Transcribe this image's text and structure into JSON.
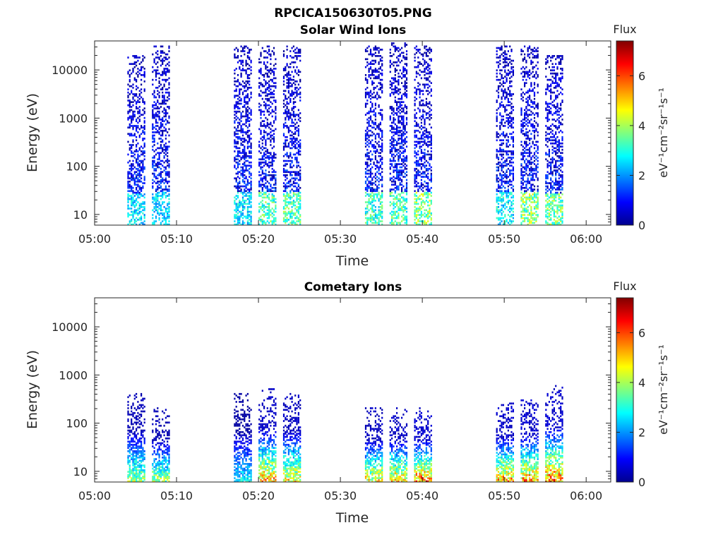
{
  "figure_title": "RPCICA150630T05.PNG",
  "colorbar": {
    "title": "Flux",
    "label": "eV⁻¹cm⁻²sr⁻¹s⁻¹",
    "ticks": [
      "0",
      "2",
      "4",
      "6"
    ],
    "range": [
      0,
      7.4
    ],
    "colormap": "jet"
  },
  "chart_data": [
    {
      "type": "heatmap",
      "title": "Solar Wind Ions",
      "xlabel": "Time",
      "ylabel": "Energy (eV)",
      "x_ticks": [
        "05:00",
        "05:10",
        "05:20",
        "05:30",
        "05:40",
        "05:50",
        "06:00"
      ],
      "x_range": [
        "05:00",
        "06:03"
      ],
      "y_scale": "log",
      "y_ticks": [
        "10",
        "100",
        "1000",
        "10000"
      ],
      "y_range": [
        6,
        40000
      ],
      "bursts": [
        {
          "center": "05:05",
          "peak_flux": 3.2,
          "max_energy_eV": 20000
        },
        {
          "center": "05:08",
          "peak_flux": 3.2,
          "max_energy_eV": 30000
        },
        {
          "center": "05:18",
          "peak_flux": 3.3,
          "max_energy_eV": 30000
        },
        {
          "center": "05:21",
          "peak_flux": 4.2,
          "max_energy_eV": 30000
        },
        {
          "center": "05:24",
          "peak_flux": 4.2,
          "max_energy_eV": 30000
        },
        {
          "center": "05:34",
          "peak_flux": 4.0,
          "max_energy_eV": 30000
        },
        {
          "center": "05:37",
          "peak_flux": 4.2,
          "max_energy_eV": 35000
        },
        {
          "center": "05:40",
          "peak_flux": 4.7,
          "max_energy_eV": 30000
        },
        {
          "center": "05:50",
          "peak_flux": 3.5,
          "max_energy_eV": 30000
        },
        {
          "center": "05:53",
          "peak_flux": 4.7,
          "max_energy_eV": 30000
        },
        {
          "center": "05:56",
          "peak_flux": 4.5,
          "max_energy_eV": 20000
        }
      ]
    },
    {
      "type": "heatmap",
      "title": "Cometary Ions",
      "xlabel": "Time",
      "ylabel": "Energy (eV)",
      "x_ticks": [
        "05:00",
        "05:10",
        "05:20",
        "05:30",
        "05:40",
        "05:50",
        "06:00"
      ],
      "x_range": [
        "05:00",
        "06:03"
      ],
      "y_scale": "log",
      "y_ticks": [
        "10",
        "100",
        "1000",
        "10000"
      ],
      "y_range": [
        6,
        40000
      ],
      "bursts": [
        {
          "center": "05:05",
          "peak_flux": 5.0,
          "max_energy_eV": 400
        },
        {
          "center": "05:08",
          "peak_flux": 5.0,
          "max_energy_eV": 200
        },
        {
          "center": "05:18",
          "peak_flux": 3.5,
          "max_energy_eV": 400
        },
        {
          "center": "05:21",
          "peak_flux": 6.5,
          "max_energy_eV": 500
        },
        {
          "center": "05:24",
          "peak_flux": 6.0,
          "max_energy_eV": 400
        },
        {
          "center": "05:34",
          "peak_flux": 6.0,
          "max_energy_eV": 200
        },
        {
          "center": "05:37",
          "peak_flux": 6.5,
          "max_energy_eV": 200
        },
        {
          "center": "05:40",
          "peak_flux": 7.2,
          "max_energy_eV": 200
        },
        {
          "center": "05:50",
          "peak_flux": 6.8,
          "max_energy_eV": 250
        },
        {
          "center": "05:53",
          "peak_flux": 7.0,
          "max_energy_eV": 300
        },
        {
          "center": "05:56",
          "peak_flux": 7.2,
          "max_energy_eV": 600
        }
      ]
    }
  ]
}
